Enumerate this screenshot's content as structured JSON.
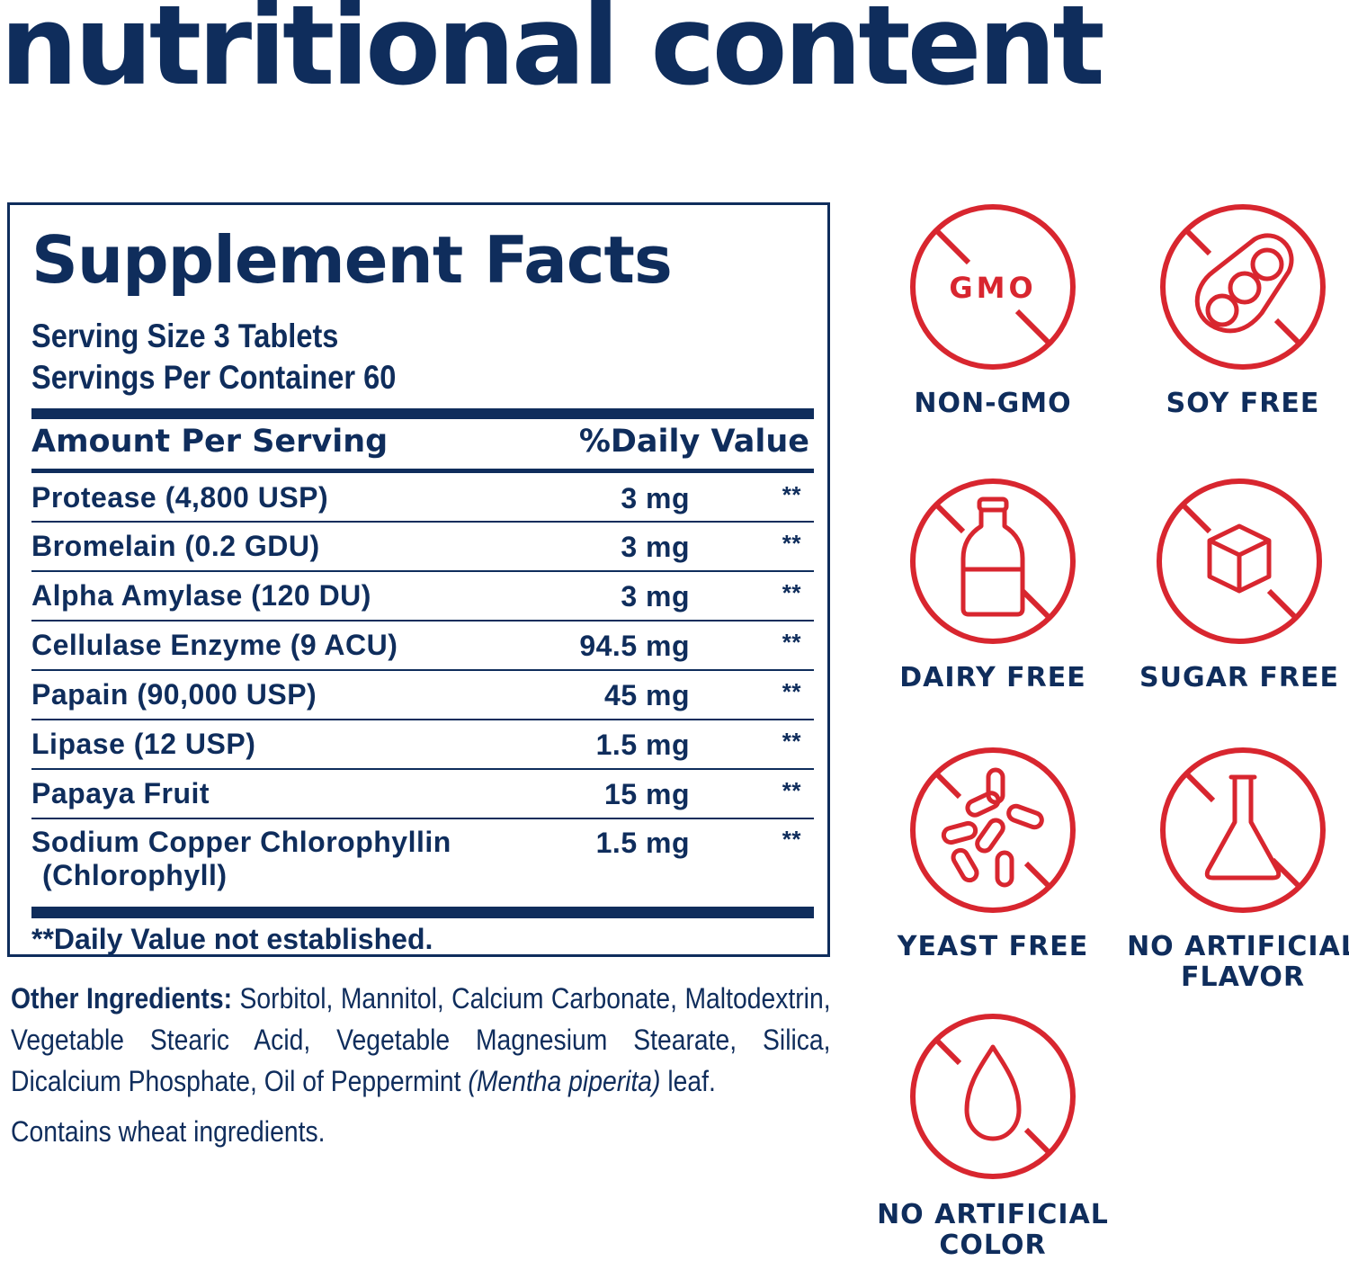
{
  "page": {
    "title": "nutritional content"
  },
  "supplement_facts": {
    "heading": "Supplement Facts",
    "serving_size": "Serving Size 3 Tablets",
    "servings_per_container": "Servings Per Container 60",
    "col_amount": "Amount Per Serving",
    "col_dv": "%Daily Value",
    "rows": [
      {
        "name": "Protease (4,800 USP)",
        "amount": "3 mg",
        "dv": "**"
      },
      {
        "name": "Bromelain (0.2 GDU)",
        "amount": "3 mg",
        "dv": "**"
      },
      {
        "name": "Alpha Amylase (120 DU)",
        "amount": "3 mg",
        "dv": "**"
      },
      {
        "name": "Cellulase Enzyme (9 ACU)",
        "amount": "94.5 mg",
        "dv": "**"
      },
      {
        "name": "Papain (90,000 USP)",
        "amount": "45 mg",
        "dv": "**"
      },
      {
        "name": "Lipase (12 USP)",
        "amount": "1.5 mg",
        "dv": "**"
      },
      {
        "name": "Papaya Fruit",
        "amount": "15 mg",
        "dv": "**"
      },
      {
        "name": "Sodium Copper Chlorophyllin",
        "name_line2": "(Chlorophyll)",
        "amount": "1.5 mg",
        "dv": "**"
      }
    ],
    "footnote": "**Daily Value not established."
  },
  "other_ingredients": {
    "label": "Other Ingredients:",
    "text_before_italic": "Sorbitol, Mannitol, Calcium Carbonate, Maltodextrin, Vegetable Stearic Acid, Vegetable Magnesium Stearate, Silica, Dicalcium Phosphate, Oil of Peppermint",
    "italic": "(Mentha piperita)",
    "text_after_italic": "leaf.",
    "contains": "Contains wheat ingredients."
  },
  "badges": [
    {
      "id": "non-gmo",
      "label_lines": [
        "NON-GMO"
      ],
      "icon_text": "GMO",
      "icon": "gmo-icon"
    },
    {
      "id": "soy-free",
      "label_lines": [
        "SOY FREE"
      ],
      "icon": "soybean-icon"
    },
    {
      "id": "dairy-free",
      "label_lines": [
        "DAIRY FREE"
      ],
      "icon": "milk-bottle-icon"
    },
    {
      "id": "sugar-free",
      "label_lines": [
        "SUGAR FREE"
      ],
      "icon": "sugar-cube-icon"
    },
    {
      "id": "yeast-free",
      "label_lines": [
        "YEAST FREE"
      ],
      "icon": "yeast-icon"
    },
    {
      "id": "no-artificial-flavor",
      "label_lines": [
        "NO ARTIFICIAL",
        "FLAVOR"
      ],
      "icon": "flask-icon"
    },
    {
      "id": "no-artificial-color",
      "label_lines": [
        "NO ARTIFICIAL",
        "COLOR"
      ],
      "icon": "droplet-icon"
    }
  ],
  "colors": {
    "navy": "#0f2d5c",
    "red": "#d8262f"
  }
}
